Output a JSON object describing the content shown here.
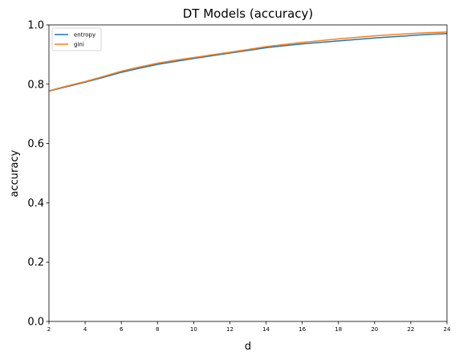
{
  "chart_data": {
    "type": "line",
    "title": "DT Models (accuracy)",
    "xlabel": "d",
    "ylabel": "accuracy",
    "xlim": [
      2,
      24
    ],
    "ylim": [
      0.0,
      1.0
    ],
    "xticks": [
      2,
      4,
      6,
      8,
      10,
      12,
      14,
      16,
      18,
      20,
      22,
      24
    ],
    "yticks": [
      "0.0",
      "0.2",
      "0.4",
      "0.6",
      "0.8",
      "1.0"
    ],
    "grid": false,
    "legend_position": "top-left",
    "x": [
      2,
      3,
      4,
      5,
      6,
      7,
      8,
      9,
      10,
      11,
      12,
      13,
      14,
      15,
      16,
      17,
      18,
      19,
      20,
      21,
      22,
      23,
      24
    ],
    "series": [
      {
        "name": "entropy",
        "color": "#1f77b4",
        "values": [
          0.777,
          0.792,
          0.807,
          0.823,
          0.84,
          0.854,
          0.867,
          0.877,
          0.887,
          0.896,
          0.905,
          0.914,
          0.923,
          0.93,
          0.936,
          0.941,
          0.946,
          0.951,
          0.956,
          0.96,
          0.964,
          0.968,
          0.971
        ]
      },
      {
        "name": "gini",
        "color": "#ff7f0e",
        "values": [
          0.778,
          0.794,
          0.809,
          0.826,
          0.844,
          0.858,
          0.871,
          0.881,
          0.89,
          0.899,
          0.908,
          0.917,
          0.927,
          0.934,
          0.941,
          0.947,
          0.953,
          0.958,
          0.963,
          0.967,
          0.971,
          0.974,
          0.976
        ]
      }
    ]
  }
}
